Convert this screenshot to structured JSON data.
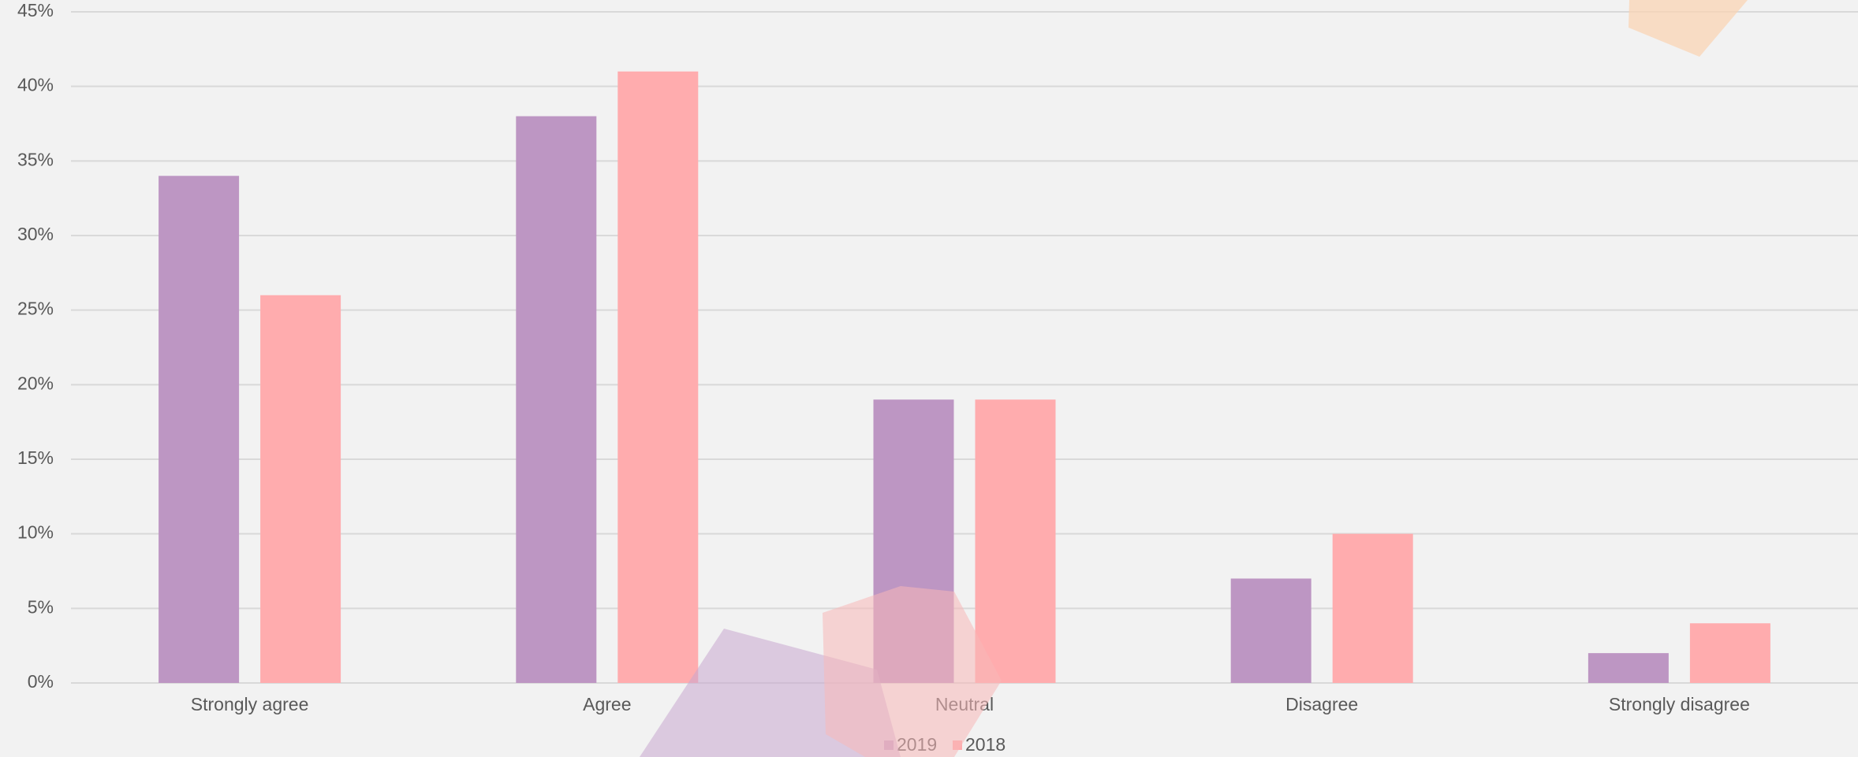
{
  "chart_data": {
    "type": "bar",
    "categories": [
      "Strongly agree",
      "Agree",
      "Neutral",
      "Disagree",
      "Strongly disagree"
    ],
    "series": [
      {
        "name": "2019",
        "color": "#bd96c3",
        "values": [
          34,
          38,
          19,
          7,
          2
        ]
      },
      {
        "name": "2018",
        "color": "#ffacae",
        "values": [
          26,
          41,
          19,
          10,
          4
        ]
      }
    ],
    "ylim": [
      0,
      45
    ],
    "yticks": [
      {
        "value": 0,
        "label": "0%"
      },
      {
        "value": 5,
        "label": "5%"
      },
      {
        "value": 10,
        "label": "10%"
      },
      {
        "value": 15,
        "label": "15%"
      },
      {
        "value": 20,
        "label": "20%"
      },
      {
        "value": 25,
        "label": "25%"
      },
      {
        "value": 30,
        "label": "30%"
      },
      {
        "value": 35,
        "label": "35%"
      },
      {
        "value": 40,
        "label": "40%"
      },
      {
        "value": 45,
        "label": "45%"
      }
    ],
    "grid": true,
    "legend": "bottom"
  }
}
